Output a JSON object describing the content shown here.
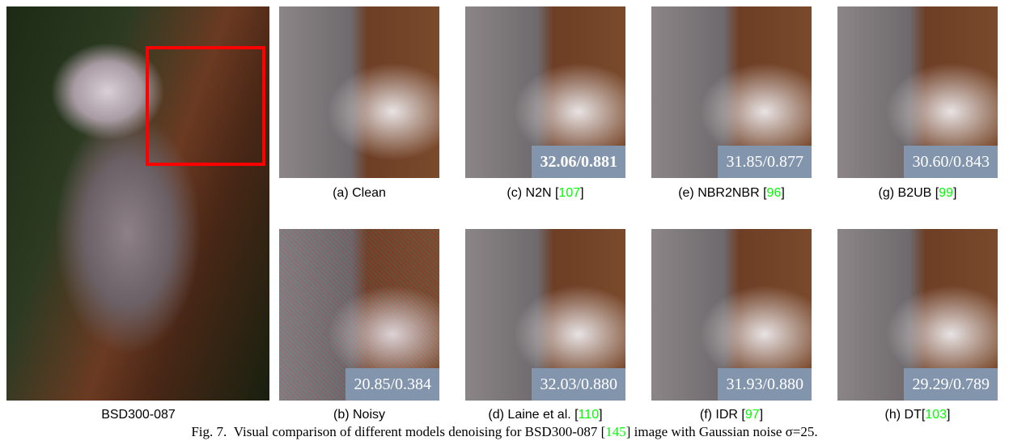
{
  "main": {
    "label": "BSD300-087"
  },
  "rows": [
    [
      {
        "prefix": "(a) Clean",
        "ref": null,
        "suffix": null,
        "metric": null,
        "bold": false
      },
      {
        "prefix": "(c) N2N [",
        "ref": "107",
        "suffix": "]",
        "metric": "32.06/0.881",
        "bold": true
      },
      {
        "prefix": "(e) NBR2NBR [",
        "ref": "96",
        "suffix": "]",
        "metric": "31.85/0.877",
        "bold": false
      },
      {
        "prefix": "(g) B2UB [",
        "ref": "99",
        "suffix": "]",
        "metric": "30.60/0.843",
        "bold": false
      }
    ],
    [
      {
        "prefix": "(b) Noisy",
        "ref": null,
        "suffix": null,
        "metric": "20.85/0.384",
        "bold": false
      },
      {
        "prefix": "(d) Laine et al. [",
        "ref": "110",
        "suffix": "]",
        "metric": "32.03/0.880",
        "bold": false
      },
      {
        "prefix": "(f) IDR [",
        "ref": "97",
        "suffix": "]",
        "metric": "31.93/0.880",
        "bold": false
      },
      {
        "prefix": "(h) DT[",
        "ref": "103",
        "suffix": "]",
        "metric": "29.29/0.789",
        "bold": false
      }
    ]
  ],
  "caption": {
    "label": "Fig. 7.",
    "text": "Visual comparison of different models denoising for BSD300-087 [",
    "ref": "145",
    "rest": "] image with Gaussian noise σ=25."
  }
}
